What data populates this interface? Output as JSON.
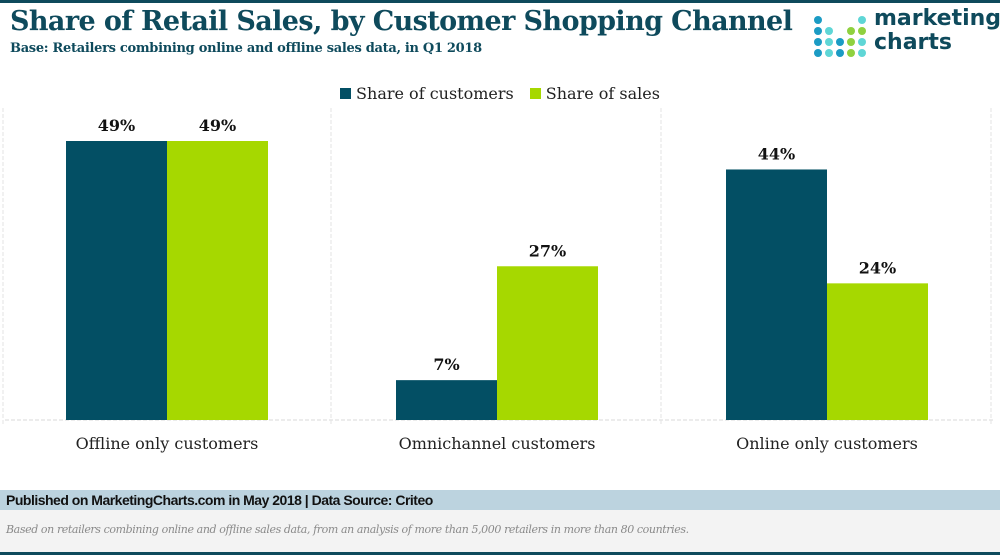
{
  "header": {
    "title": "Share of Retail Sales, by Customer Shopping Channel",
    "subtitle": "Base: Retailers combining online and offline sales data, in Q1 2018"
  },
  "logo": {
    "line1": "marketing",
    "line2": "charts",
    "icon": "dot-grid-logo-icon"
  },
  "colors": {
    "brand": "#0e4a5c",
    "series_customers": "#034f64",
    "series_sales": "#a6d800"
  },
  "chart_data": {
    "type": "bar",
    "title": "Share of Retail Sales, by Customer Shopping Channel",
    "subtitle": "Base: Retailers combining online and offline sales data, in Q1 2018",
    "categories": [
      "Offline only customers",
      "Omnichannel customers",
      "Online only customers"
    ],
    "series": [
      {
        "name": "Share of customers",
        "color": "#034f64",
        "values": [
          49,
          7,
          44
        ],
        "labels": [
          "49%",
          "7%",
          "44%"
        ]
      },
      {
        "name": "Share of sales",
        "color": "#a6d800",
        "values": [
          49,
          27,
          24
        ],
        "labels": [
          "49%",
          "27%",
          "24%"
        ]
      }
    ],
    "xlabel": "",
    "ylabel": "",
    "ylim": [
      0,
      49
    ],
    "value_format": "percent",
    "grid": "vertical dashed separators between categories",
    "legend": "top-center"
  },
  "footer": {
    "published": "Published on MarketingCharts.com in May 2018 | Data Source: Criteo",
    "note": "Based on retailers combining online and offline sales data, from an analysis of more than 5,000 retailers in more than 80 countries."
  }
}
